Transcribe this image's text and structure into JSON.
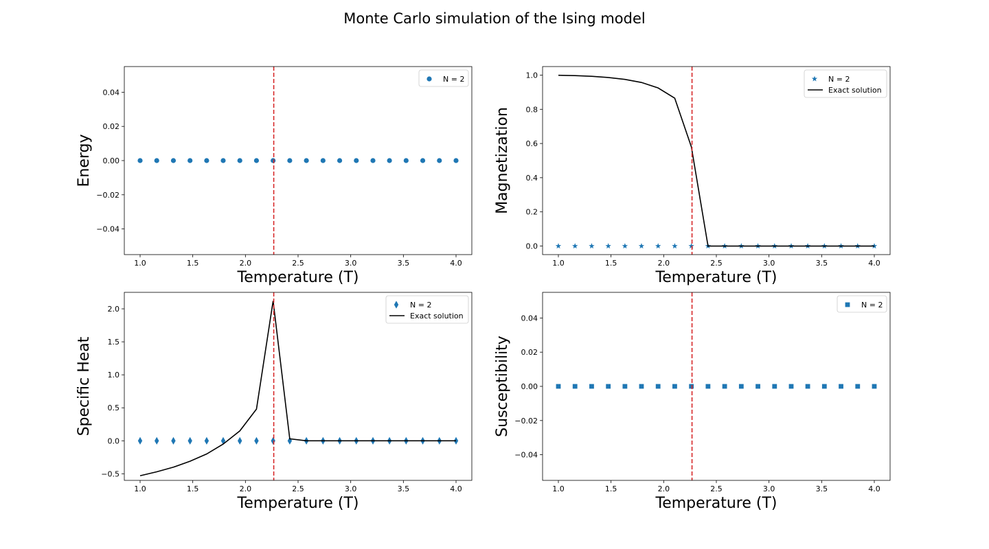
{
  "figure": {
    "title": "Monte Carlo simulation of the Ising model"
  },
  "colors": {
    "series": "#1f77b4",
    "exact": "#000000",
    "critical_line": "#d62728"
  },
  "chart_data": [
    {
      "type": "scatter",
      "xlabel": "Temperature (T)",
      "ylabel": "Energy",
      "xlim": [
        0.85,
        4.15
      ],
      "ylim": [
        -0.055,
        0.055
      ],
      "xticks": [
        "1.0",
        "1.5",
        "2.0",
        "2.5",
        "3.0",
        "3.5",
        "4.0"
      ],
      "yticks": [
        "−0.04",
        "−0.02",
        "0.00",
        "0.02",
        "0.04"
      ],
      "critical_temperature": 2.269,
      "legend": "upper right",
      "series": [
        {
          "name": "N = 2",
          "marker": "circle",
          "x": [
            1.0,
            1.158,
            1.316,
            1.474,
            1.632,
            1.789,
            1.947,
            2.105,
            2.263,
            2.421,
            2.579,
            2.737,
            2.895,
            3.053,
            3.211,
            3.368,
            3.526,
            3.684,
            3.842,
            4.0
          ],
          "y": [
            0,
            0,
            0,
            0,
            0,
            0,
            0,
            0,
            0,
            0,
            0,
            0,
            0,
            0,
            0,
            0,
            0,
            0,
            0,
            0
          ]
        }
      ]
    },
    {
      "type": "scatter",
      "xlabel": "Temperature (T)",
      "ylabel": "Magnetization",
      "xlim": [
        0.85,
        4.15
      ],
      "ylim": [
        -0.05,
        1.05
      ],
      "xticks": [
        "1.0",
        "1.5",
        "2.0",
        "2.5",
        "3.0",
        "3.5",
        "4.0"
      ],
      "yticks": [
        "0.0",
        "0.2",
        "0.4",
        "0.6",
        "0.8",
        "1.0"
      ],
      "critical_temperature": 2.269,
      "legend": "upper right",
      "series": [
        {
          "name": "N = 2",
          "marker": "star",
          "x": [
            1.0,
            1.158,
            1.316,
            1.474,
            1.632,
            1.789,
            1.947,
            2.105,
            2.263,
            2.421,
            2.579,
            2.737,
            2.895,
            3.053,
            3.211,
            3.368,
            3.526,
            3.684,
            3.842,
            4.0
          ],
          "y": [
            0,
            0,
            0,
            0,
            0,
            0,
            0,
            0,
            0,
            0,
            0,
            0,
            0,
            0,
            0,
            0,
            0,
            0,
            0,
            0
          ]
        },
        {
          "name": "Exact solution",
          "marker": "line",
          "x": [
            1.0,
            1.158,
            1.316,
            1.474,
            1.632,
            1.789,
            1.947,
            2.105,
            2.263,
            2.421,
            2.579,
            2.737,
            2.895,
            3.053,
            3.211,
            3.368,
            3.526,
            3.684,
            3.842,
            4.0
          ],
          "y": [
            0.999,
            0.997,
            0.993,
            0.986,
            0.975,
            0.957,
            0.925,
            0.865,
            0.58,
            0,
            0,
            0,
            0,
            0,
            0,
            0,
            0,
            0,
            0,
            0
          ]
        }
      ]
    },
    {
      "type": "scatter",
      "xlabel": "Temperature (T)",
      "ylabel": "Specific Heat",
      "xlim": [
        0.85,
        4.15
      ],
      "ylim": [
        -0.6,
        2.25
      ],
      "xticks": [
        "1.0",
        "1.5",
        "2.0",
        "2.5",
        "3.0",
        "3.5",
        "4.0"
      ],
      "yticks": [
        "−0.5",
        "0.0",
        "0.5",
        "1.0",
        "1.5",
        "2.0"
      ],
      "critical_temperature": 2.269,
      "legend": "upper right",
      "series": [
        {
          "name": "N = 2",
          "marker": "thin_diamond",
          "x": [
            1.0,
            1.158,
            1.316,
            1.474,
            1.632,
            1.789,
            1.947,
            2.105,
            2.263,
            2.421,
            2.579,
            2.737,
            2.895,
            3.053,
            3.211,
            3.368,
            3.526,
            3.684,
            3.842,
            4.0
          ],
          "y": [
            0,
            0,
            0,
            0,
            0,
            0,
            0,
            0,
            0,
            0,
            0,
            0,
            0,
            0,
            0,
            0,
            0,
            0,
            0,
            0
          ]
        },
        {
          "name": "Exact solution",
          "marker": "line",
          "x": [
            1.0,
            1.158,
            1.316,
            1.474,
            1.632,
            1.789,
            1.947,
            2.105,
            2.263,
            2.421,
            2.579,
            2.737,
            2.895,
            3.053,
            3.211,
            3.368,
            3.526,
            3.684,
            3.842,
            4.0
          ],
          "y": [
            -0.53,
            -0.47,
            -0.4,
            -0.31,
            -0.2,
            -0.05,
            0.15,
            0.48,
            2.12,
            0.03,
            0,
            0,
            0,
            0,
            0,
            0,
            0,
            0,
            0,
            0
          ]
        }
      ]
    },
    {
      "type": "scatter",
      "xlabel": "Temperature (T)",
      "ylabel": "Susceptibility",
      "xlim": [
        0.85,
        4.15
      ],
      "ylim": [
        -0.055,
        0.055
      ],
      "xticks": [
        "1.0",
        "1.5",
        "2.0",
        "2.5",
        "3.0",
        "3.5",
        "4.0"
      ],
      "yticks": [
        "−0.04",
        "−0.02",
        "0.00",
        "0.02",
        "0.04"
      ],
      "critical_temperature": 2.269,
      "legend": "upper right",
      "series": [
        {
          "name": "N = 2",
          "marker": "square",
          "x": [
            1.0,
            1.158,
            1.316,
            1.474,
            1.632,
            1.789,
            1.947,
            2.105,
            2.263,
            2.421,
            2.579,
            2.737,
            2.895,
            3.053,
            3.211,
            3.368,
            3.526,
            3.684,
            3.842,
            4.0
          ],
          "y": [
            0,
            0,
            0,
            0,
            0,
            0,
            0,
            0,
            0,
            0,
            0,
            0,
            0,
            0,
            0,
            0,
            0,
            0,
            0,
            0
          ]
        }
      ]
    }
  ]
}
